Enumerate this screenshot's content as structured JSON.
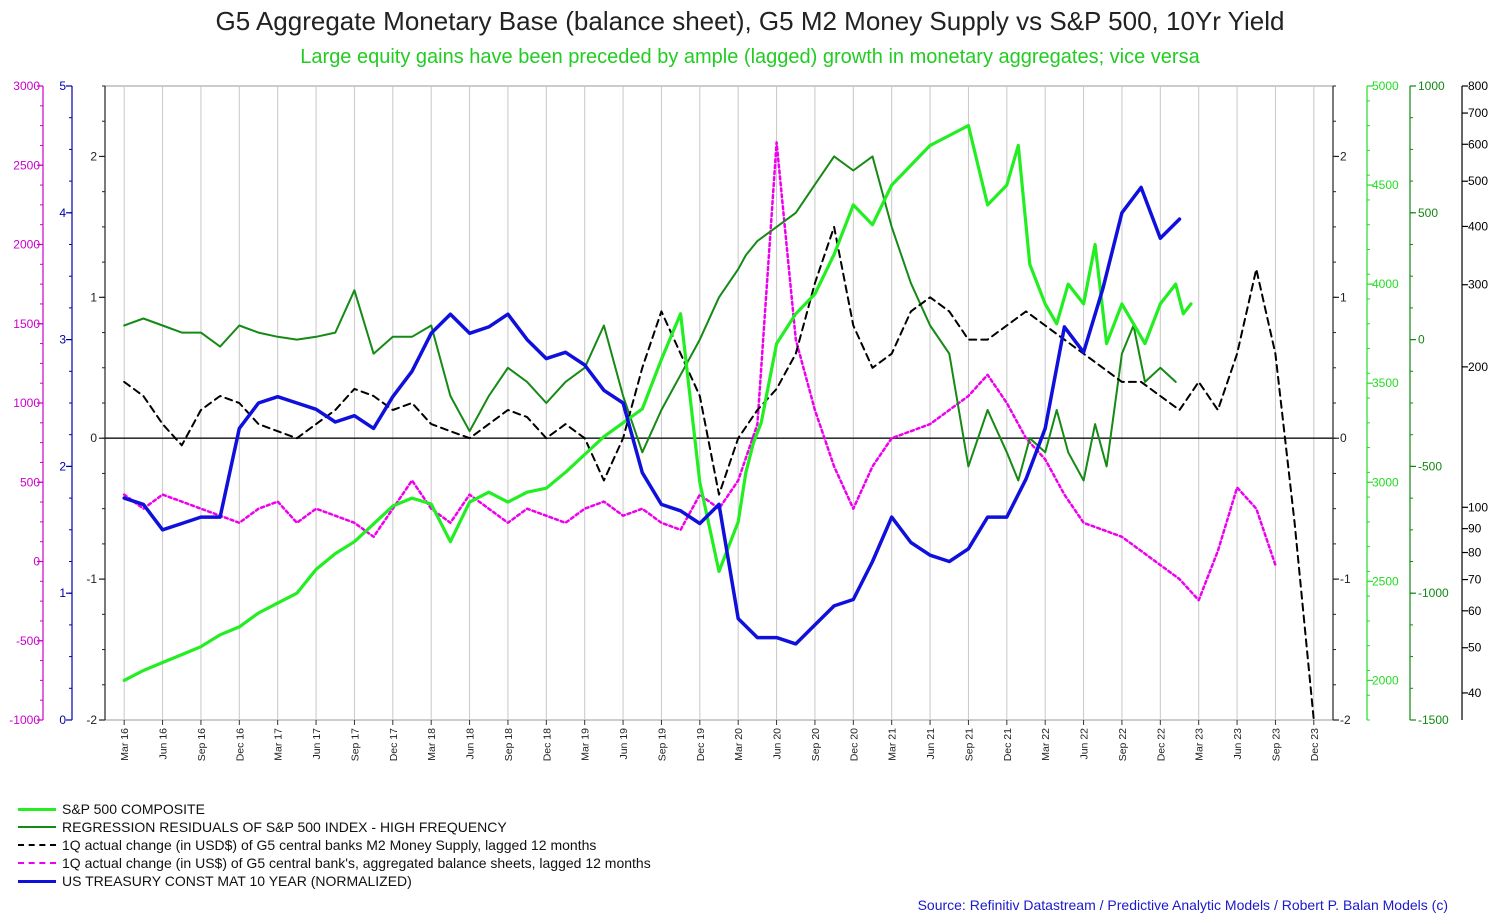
{
  "title": "G5 Aggregate Monetary Base (balance sheet), G5 M2 Money Supply vs S&P 500, 10Yr Yield",
  "subtitle": "Large equity gains have been preceded by ample (lagged) growth in monetary aggregates; vice versa",
  "source": "Source: Refinitiv Datastream  / Predictive Analytic Models / Robert P. Balan Models (c)",
  "chart_data": {
    "type": "line",
    "x_labels": [
      "Mar 16",
      "Jun 16",
      "Sep 16",
      "Dec 16",
      "Mar 17",
      "Jun 17",
      "Sep 17",
      "Dec 17",
      "Mar 18",
      "Jun 18",
      "Sep 18",
      "Dec 18",
      "Mar 19",
      "Jun 19",
      "Sep 19",
      "Dec 19",
      "Mar 20",
      "Jun 20",
      "Sep 20",
      "Dec 20",
      "Mar 21",
      "Jun 21",
      "Sep 21",
      "Dec 21",
      "Mar 22",
      "Jun 22",
      "Sep 22",
      "Dec 22",
      "Mar 23",
      "Jun 23",
      "Sep 23",
      "Dec 23"
    ],
    "axes": {
      "left_outer": {
        "ticks": [
          "3000",
          "2500",
          "2000",
          "1500",
          "1000",
          "500",
          "0",
          "-500",
          "-1000"
        ],
        "range": [
          -1000,
          3000
        ],
        "color": "#cc00cc"
      },
      "left_inner": {
        "ticks": [
          "5",
          "4",
          "3",
          "2",
          "1",
          "0"
        ],
        "range": [
          0,
          5
        ],
        "color": "#0000aa"
      },
      "center_left": {
        "ticks": [
          "2",
          "1",
          "0",
          "-1",
          "-2"
        ],
        "range": [
          -2,
          2.5
        ],
        "color": "#222222"
      },
      "center_right": {
        "ticks": [
          "2",
          "1",
          "0",
          "-1",
          "-2"
        ],
        "range": [
          -2,
          2.5
        ],
        "color": "#222222"
      },
      "right_1": {
        "ticks": [
          "5000",
          "4500",
          "4000",
          "3500",
          "3000",
          "2500",
          "2000"
        ],
        "range": [
          1800,
          5000
        ],
        "color": "#22dd22"
      },
      "right_2": {
        "ticks": [
          "1000",
          "500",
          "0",
          "-500",
          "-1000",
          "-1500"
        ],
        "range": [
          -1500,
          1000
        ],
        "color": "#118811"
      },
      "right_3": {
        "ticks": [
          "800",
          "700",
          "600",
          "500",
          "400",
          "300",
          "200",
          "100",
          "90",
          "80",
          "70",
          "60",
          "50",
          "40"
        ],
        "range": [
          35,
          800
        ],
        "scale": "log",
        "color": "#000000"
      }
    },
    "series": [
      {
        "name": "S&P 500 COMPOSITE",
        "color": "#22ee22",
        "dash": "solid",
        "width": 3.2,
        "axis": "right_1",
        "x": [
          0,
          0.5,
          1,
          1.5,
          2,
          2.5,
          3,
          3.5,
          4,
          4.5,
          5,
          5.5,
          6,
          6.5,
          7,
          7.5,
          8,
          8.5,
          9,
          9.5,
          10,
          10.5,
          11,
          11.5,
          12,
          12.5,
          13,
          13.5,
          14,
          14.5,
          15,
          15.5,
          16,
          16.2,
          16.4,
          16.6,
          16.8,
          17,
          17.5,
          18,
          18.5,
          19,
          19.5,
          20,
          20.5,
          21,
          21.5,
          22,
          22.5,
          23,
          23.3,
          23.6,
          24,
          24.3,
          24.6,
          25,
          25.3,
          25.6,
          26,
          26.3,
          26.6,
          27,
          27.2,
          27.4,
          27.6,
          27.8
        ],
        "values": [
          2000,
          2050,
          2090,
          2130,
          2170,
          2230,
          2270,
          2340,
          2390,
          2440,
          2560,
          2640,
          2700,
          2790,
          2880,
          2920,
          2890,
          2700,
          2900,
          2950,
          2900,
          2950,
          2970,
          3050,
          3140,
          3230,
          3300,
          3370,
          3620,
          3850,
          3000,
          2550,
          2800,
          3050,
          3200,
          3300,
          3500,
          3700,
          3850,
          3950,
          4150,
          4400,
          4300,
          4500,
          4600,
          4700,
          4750,
          4800,
          4400,
          4500,
          4700,
          4100,
          3900,
          3800,
          4000,
          3900,
          4200,
          3700,
          3900,
          3800,
          3700,
          3900,
          3950,
          4000,
          3850,
          3900
        ]
      },
      {
        "name": "REGRESSION RESIDUALS OF S&P 500 INDEX - HIGH FREQUENCY",
        "color": "#158a15",
        "dash": "solid",
        "width": 2,
        "axis": "center_left",
        "x": [
          0,
          0.5,
          1,
          1.5,
          2,
          2.5,
          3,
          3.5,
          4,
          4.5,
          5,
          5.5,
          6,
          6.5,
          7,
          7.5,
          8,
          8.5,
          9,
          9.5,
          10,
          10.5,
          11,
          11.5,
          12,
          12.5,
          13,
          13.5,
          14,
          14.5,
          15,
          15.5,
          16,
          16.2,
          16.5,
          17,
          17.5,
          18,
          18.5,
          19,
          19.5,
          20,
          20.5,
          21,
          21.5,
          22,
          22.5,
          23,
          23.3,
          23.6,
          24,
          24.3,
          24.6,
          25,
          25.3,
          25.6,
          26,
          26.3,
          26.6,
          27,
          27.2,
          27.4
        ],
        "values": [
          0.8,
          0.85,
          0.8,
          0.75,
          0.75,
          0.65,
          0.8,
          0.75,
          0.72,
          0.7,
          0.72,
          0.75,
          1.05,
          0.6,
          0.72,
          0.72,
          0.8,
          0.3,
          0.05,
          0.3,
          0.5,
          0.4,
          0.25,
          0.4,
          0.5,
          0.8,
          0.3,
          -0.1,
          0.2,
          0.45,
          0.7,
          1.0,
          1.2,
          1.3,
          1.4,
          1.5,
          1.6,
          1.8,
          2.0,
          1.9,
          2.0,
          1.5,
          1.1,
          0.8,
          0.6,
          -0.2,
          0.2,
          -0.1,
          -0.3,
          0.0,
          -0.1,
          0.2,
          -0.1,
          -0.3,
          0.1,
          -0.2,
          0.6,
          0.8,
          0.4,
          0.5,
          0.45,
          0.4
        ]
      },
      {
        "name": "1Q actual change (in USD$) of G5 central banks M2 Money Supply, lagged 12 months",
        "color": "#000000",
        "dash": "7,5",
        "width": 2,
        "axis": "center_left",
        "x": [
          0,
          0.5,
          1,
          1.5,
          2,
          2.5,
          3,
          3.5,
          4,
          4.5,
          5,
          5.5,
          6,
          6.5,
          7,
          7.5,
          8,
          8.5,
          9,
          9.5,
          10,
          10.5,
          11,
          11.5,
          12,
          12.5,
          13,
          13.5,
          14,
          14.5,
          15,
          15.5,
          16,
          16.5,
          17,
          17.5,
          18,
          18.5,
          19,
          19.5,
          20,
          20.5,
          21,
          21.5,
          22,
          22.5,
          23,
          23.5,
          24,
          24.5,
          25,
          25.5,
          26,
          26.5,
          27,
          27.5,
          28,
          28.5,
          29,
          29.5,
          30,
          30.5,
          31
        ],
        "values": [
          0.4,
          0.3,
          0.1,
          -0.05,
          0.2,
          0.3,
          0.25,
          0.1,
          0.05,
          0.0,
          0.1,
          0.2,
          0.35,
          0.3,
          0.2,
          0.25,
          0.1,
          0.05,
          0.0,
          0.1,
          0.2,
          0.15,
          0.0,
          0.1,
          0.0,
          -0.3,
          0.0,
          0.5,
          0.9,
          0.6,
          0.3,
          -0.4,
          0.0,
          0.2,
          0.35,
          0.6,
          1.1,
          1.5,
          0.8,
          0.5,
          0.6,
          0.9,
          1.0,
          0.9,
          0.7,
          0.7,
          0.8,
          0.9,
          0.8,
          0.7,
          0.6,
          0.5,
          0.4,
          0.4,
          0.3,
          0.2,
          0.4,
          0.2,
          0.6,
          1.2,
          0.6,
          -0.6,
          -2.0
        ]
      },
      {
        "name": "1Q actual change (in US$) of G5 central bank's, aggregated balance sheets, lagged 12 months",
        "color": "#ee00ee",
        "dash": "3,3",
        "width": 2.5,
        "axis": "center_left",
        "x": [
          0,
          0.5,
          1,
          1.5,
          2,
          2.5,
          3,
          3.5,
          4,
          4.5,
          5,
          5.5,
          6,
          6.5,
          7,
          7.5,
          8,
          8.5,
          9,
          9.5,
          10,
          10.5,
          11,
          11.5,
          12,
          12.5,
          13,
          13.5,
          14,
          14.5,
          15,
          15.5,
          16,
          16.5,
          17,
          17.5,
          18,
          18.5,
          19,
          19.5,
          20,
          20.5,
          21,
          21.5,
          22,
          22.5,
          23,
          23.5,
          24,
          24.5,
          25,
          25.5,
          26,
          26.5,
          27,
          27.5,
          28,
          28.5,
          29,
          29.5,
          30
        ],
        "values": [
          -0.4,
          -0.5,
          -0.4,
          -0.45,
          -0.5,
          -0.55,
          -0.6,
          -0.5,
          -0.45,
          -0.6,
          -0.5,
          -0.55,
          -0.6,
          -0.7,
          -0.5,
          -0.3,
          -0.5,
          -0.6,
          -0.4,
          -0.5,
          -0.6,
          -0.5,
          -0.55,
          -0.6,
          -0.5,
          -0.45,
          -0.55,
          -0.5,
          -0.6,
          -0.65,
          -0.4,
          -0.5,
          -0.3,
          0.1,
          2.1,
          0.7,
          0.2,
          -0.2,
          -0.5,
          -0.2,
          0.0,
          0.05,
          0.1,
          0.2,
          0.3,
          0.45,
          0.25,
          0.0,
          -0.15,
          -0.4,
          -0.6,
          -0.65,
          -0.7,
          -0.8,
          -0.9,
          -1.0,
          -1.15,
          -0.8,
          -0.35,
          -0.5,
          -0.9
        ]
      },
      {
        "name": "US TREASURY CONST MAT 10 YEAR (NORMALIZED)",
        "color": "#1010dd",
        "dash": "solid",
        "width": 3.5,
        "axis": "left_inner",
        "x": [
          0,
          0.5,
          1,
          1.5,
          2,
          2.5,
          3,
          3.5,
          4,
          4.5,
          5,
          5.5,
          6,
          6.5,
          7,
          7.5,
          8,
          8.5,
          9,
          9.5,
          10,
          10.5,
          11,
          11.5,
          12,
          12.5,
          13,
          13.5,
          14,
          14.5,
          15,
          15.5,
          16,
          16.5,
          17,
          17.5,
          18,
          18.5,
          19,
          19.5,
          20,
          20.5,
          21,
          21.5,
          22,
          22.5,
          23,
          23.5,
          24,
          24.5,
          25,
          25.5,
          26,
          26.5,
          27,
          27.5
        ],
        "values": [
          1.75,
          1.7,
          1.5,
          1.55,
          1.6,
          1.6,
          2.3,
          2.5,
          2.55,
          2.5,
          2.45,
          2.35,
          2.4,
          2.3,
          2.55,
          2.75,
          3.05,
          3.2,
          3.05,
          3.1,
          3.2,
          3.0,
          2.85,
          2.9,
          2.8,
          2.6,
          2.5,
          1.95,
          1.7,
          1.65,
          1.55,
          1.7,
          0.8,
          0.65,
          0.65,
          0.6,
          0.75,
          0.9,
          0.95,
          1.25,
          1.6,
          1.4,
          1.3,
          1.25,
          1.35,
          1.6,
          1.6,
          1.9,
          2.3,
          3.1,
          2.9,
          3.4,
          4.0,
          4.2,
          3.8,
          3.95
        ]
      }
    ]
  }
}
